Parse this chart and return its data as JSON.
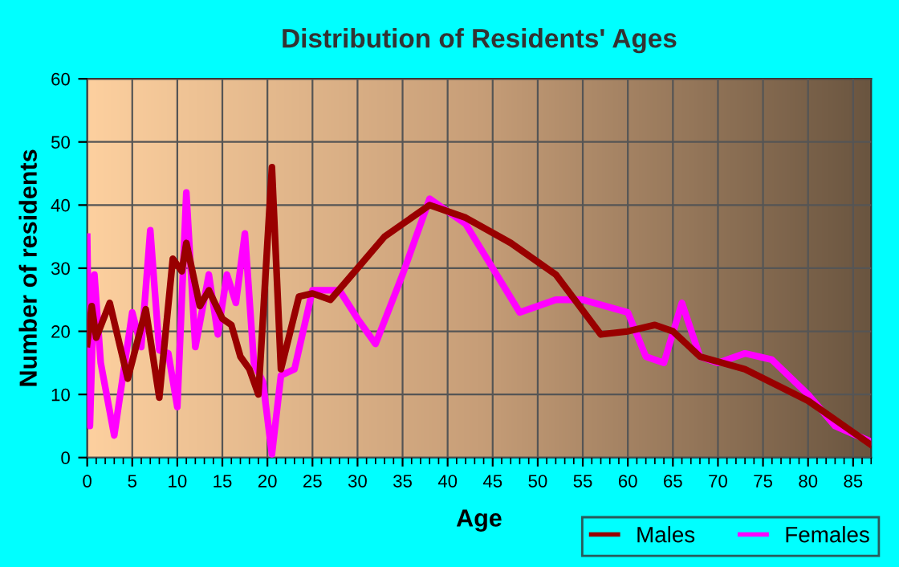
{
  "chart_data": {
    "type": "line",
    "title": "Distribution of Residents' Ages",
    "xlabel": "Age",
    "ylabel": "Number of residents",
    "series": [
      {
        "name": "Males",
        "color": "#990000",
        "x": [
          0,
          0.5,
          1,
          2.5,
          4.5,
          6.5,
          8,
          9.5,
          10.5,
          11,
          12.5,
          13.5,
          15,
          16,
          17,
          18,
          19,
          20.5,
          21.5,
          23.5,
          25,
          27,
          30,
          33,
          38,
          42,
          47,
          52,
          57,
          60,
          63,
          65,
          68,
          73,
          80,
          87
        ],
        "values": [
          18,
          24,
          19,
          24.5,
          12.5,
          23.5,
          9.5,
          31.5,
          29.5,
          34,
          24,
          26.5,
          22,
          21,
          16,
          14,
          10,
          46,
          14,
          25.5,
          26,
          25,
          30,
          35,
          40,
          38,
          34,
          29,
          19.5,
          20,
          21,
          20,
          16,
          14,
          9,
          2
        ]
      },
      {
        "name": "Females",
        "color": "#ff00ff",
        "x": [
          0,
          0.3,
          0.8,
          1.5,
          3,
          5,
          6,
          7,
          8,
          9,
          10,
          11,
          12,
          13.5,
          14.5,
          15.5,
          16.5,
          17.5,
          18.5,
          19.5,
          20.5,
          21.5,
          23,
          25,
          28,
          30,
          32,
          35,
          38,
          42,
          45,
          48,
          52,
          55,
          60,
          62,
          64,
          66,
          68,
          70,
          73,
          76,
          80,
          83,
          87
        ],
        "values": [
          35,
          5,
          29,
          15,
          3.5,
          23,
          17.5,
          36,
          17,
          16.5,
          8,
          42,
          17.5,
          29,
          19.5,
          29,
          24.5,
          35.5,
          15,
          12,
          0.5,
          13,
          14,
          26.5,
          26.5,
          22,
          18,
          29,
          41,
          37,
          30,
          23,
          25,
          25,
          23,
          16,
          15,
          24.5,
          16,
          15,
          16.5,
          15.5,
          10,
          5,
          2.5
        ]
      }
    ],
    "xlim": [
      0,
      87
    ],
    "xticks": [
      0,
      5,
      10,
      15,
      20,
      25,
      30,
      35,
      40,
      45,
      50,
      55,
      60,
      65,
      70,
      75,
      80,
      85
    ],
    "ylim": [
      0,
      60
    ],
    "yticks": [
      0,
      10,
      20,
      30,
      40,
      50,
      60
    ],
    "grid": true,
    "legend": "bottom right",
    "marker": "none",
    "line_style": "solid"
  }
}
